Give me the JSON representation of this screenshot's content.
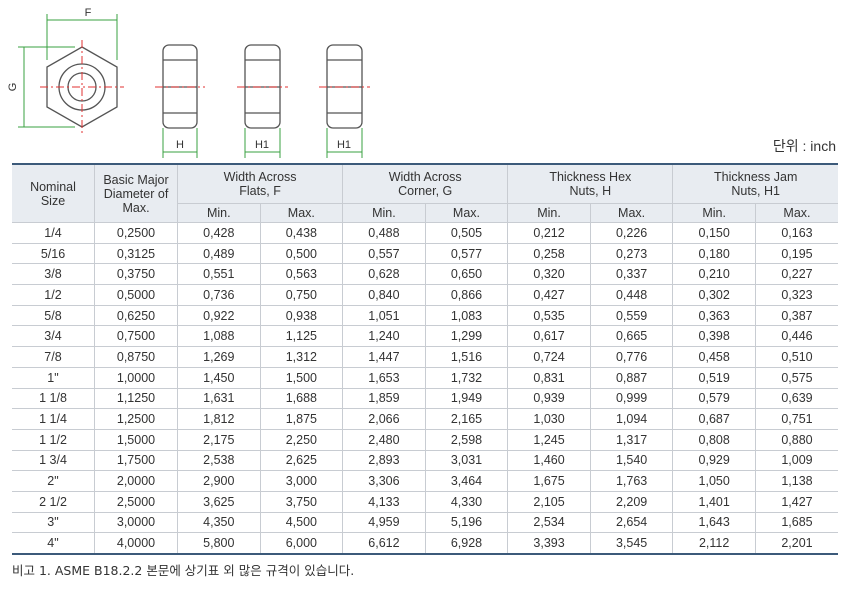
{
  "diagram": {
    "labels": [
      "F",
      "G",
      "H",
      "H1",
      "H1"
    ]
  },
  "unit": "단위 : inch",
  "table": {
    "header": [
      [
        "Nominal",
        "Size"
      ],
      [
        "Basic Major",
        "Diameter of",
        "Max."
      ],
      [
        "Width Across",
        "Flats, F"
      ],
      [
        "Width Across",
        "Corner, G"
      ],
      [
        "Thickness Hex",
        "Nuts, H"
      ],
      [
        "Thickness Jam",
        "Nuts, H1"
      ]
    ],
    "subheader": [
      "Min.",
      "Max.",
      "Min.",
      "Max.",
      "Min.",
      "Max.",
      "Min.",
      "Max."
    ],
    "rows": [
      [
        "1/4",
        "0,2500",
        "0,428",
        "0,438",
        "0,488",
        "0,505",
        "0,212",
        "0,226",
        "0,150",
        "0,163"
      ],
      [
        "5/16",
        "0,3125",
        "0,489",
        "0,500",
        "0,557",
        "0,577",
        "0,258",
        "0,273",
        "0,180",
        "0,195"
      ],
      [
        "3/8",
        "0,3750",
        "0,551",
        "0,563",
        "0,628",
        "0,650",
        "0,320",
        "0,337",
        "0,210",
        "0,227"
      ],
      [
        "1/2",
        "0,5000",
        "0,736",
        "0,750",
        "0,840",
        "0,866",
        "0,427",
        "0,448",
        "0,302",
        "0,323"
      ],
      [
        "5/8",
        "0,6250",
        "0,922",
        "0,938",
        "1,051",
        "1,083",
        "0,535",
        "0,559",
        "0,363",
        "0,387"
      ],
      [
        "3/4",
        "0,7500",
        "1,088",
        "1,125",
        "1,240",
        "1,299",
        "0,617",
        "0,665",
        "0,398",
        "0,446"
      ],
      [
        "7/8",
        "0,8750",
        "1,269",
        "1,312",
        "1,447",
        "1,516",
        "0,724",
        "0,776",
        "0,458",
        "0,510"
      ],
      [
        "1\"",
        "1,0000",
        "1,450",
        "1,500",
        "1,653",
        "1,732",
        "0,831",
        "0,887",
        "0,519",
        "0,575"
      ],
      [
        "1 1/8",
        "1,1250",
        "1,631",
        "1,688",
        "1,859",
        "1,949",
        "0,939",
        "0,999",
        "0,579",
        "0,639"
      ],
      [
        "1 1/4",
        "1,2500",
        "1,812",
        "1,875",
        "2,066",
        "2,165",
        "1,030",
        "1,094",
        "0,687",
        "0,751"
      ],
      [
        "1 1/2",
        "1,5000",
        "2,175",
        "2,250",
        "2,480",
        "2,598",
        "1,245",
        "1,317",
        "0,808",
        "0,880"
      ],
      [
        "1 3/4",
        "1,7500",
        "2,538",
        "2,625",
        "2,893",
        "3,031",
        "1,460",
        "1,540",
        "0,929",
        "1,009"
      ],
      [
        "2\"",
        "2,0000",
        "2,900",
        "3,000",
        "3,306",
        "3,464",
        "1,675",
        "1,763",
        "1,050",
        "1,138"
      ],
      [
        "2 1/2",
        "2,5000",
        "3,625",
        "3,750",
        "4,133",
        "4,330",
        "2,105",
        "2,209",
        "1,401",
        "1,427"
      ],
      [
        "3\"",
        "3,0000",
        "4,350",
        "4,500",
        "4,959",
        "5,196",
        "2,534",
        "2,654",
        "1,643",
        "1,685"
      ],
      [
        "4\"",
        "4,0000",
        "5,800",
        "6,000",
        "6,612",
        "6,928",
        "3,393",
        "3,545",
        "2,112",
        "2,201"
      ]
    ]
  },
  "footnote": "비고 1.  ASME B18.2.2 본문에 상기표 외 많은 규격이 있습니다."
}
